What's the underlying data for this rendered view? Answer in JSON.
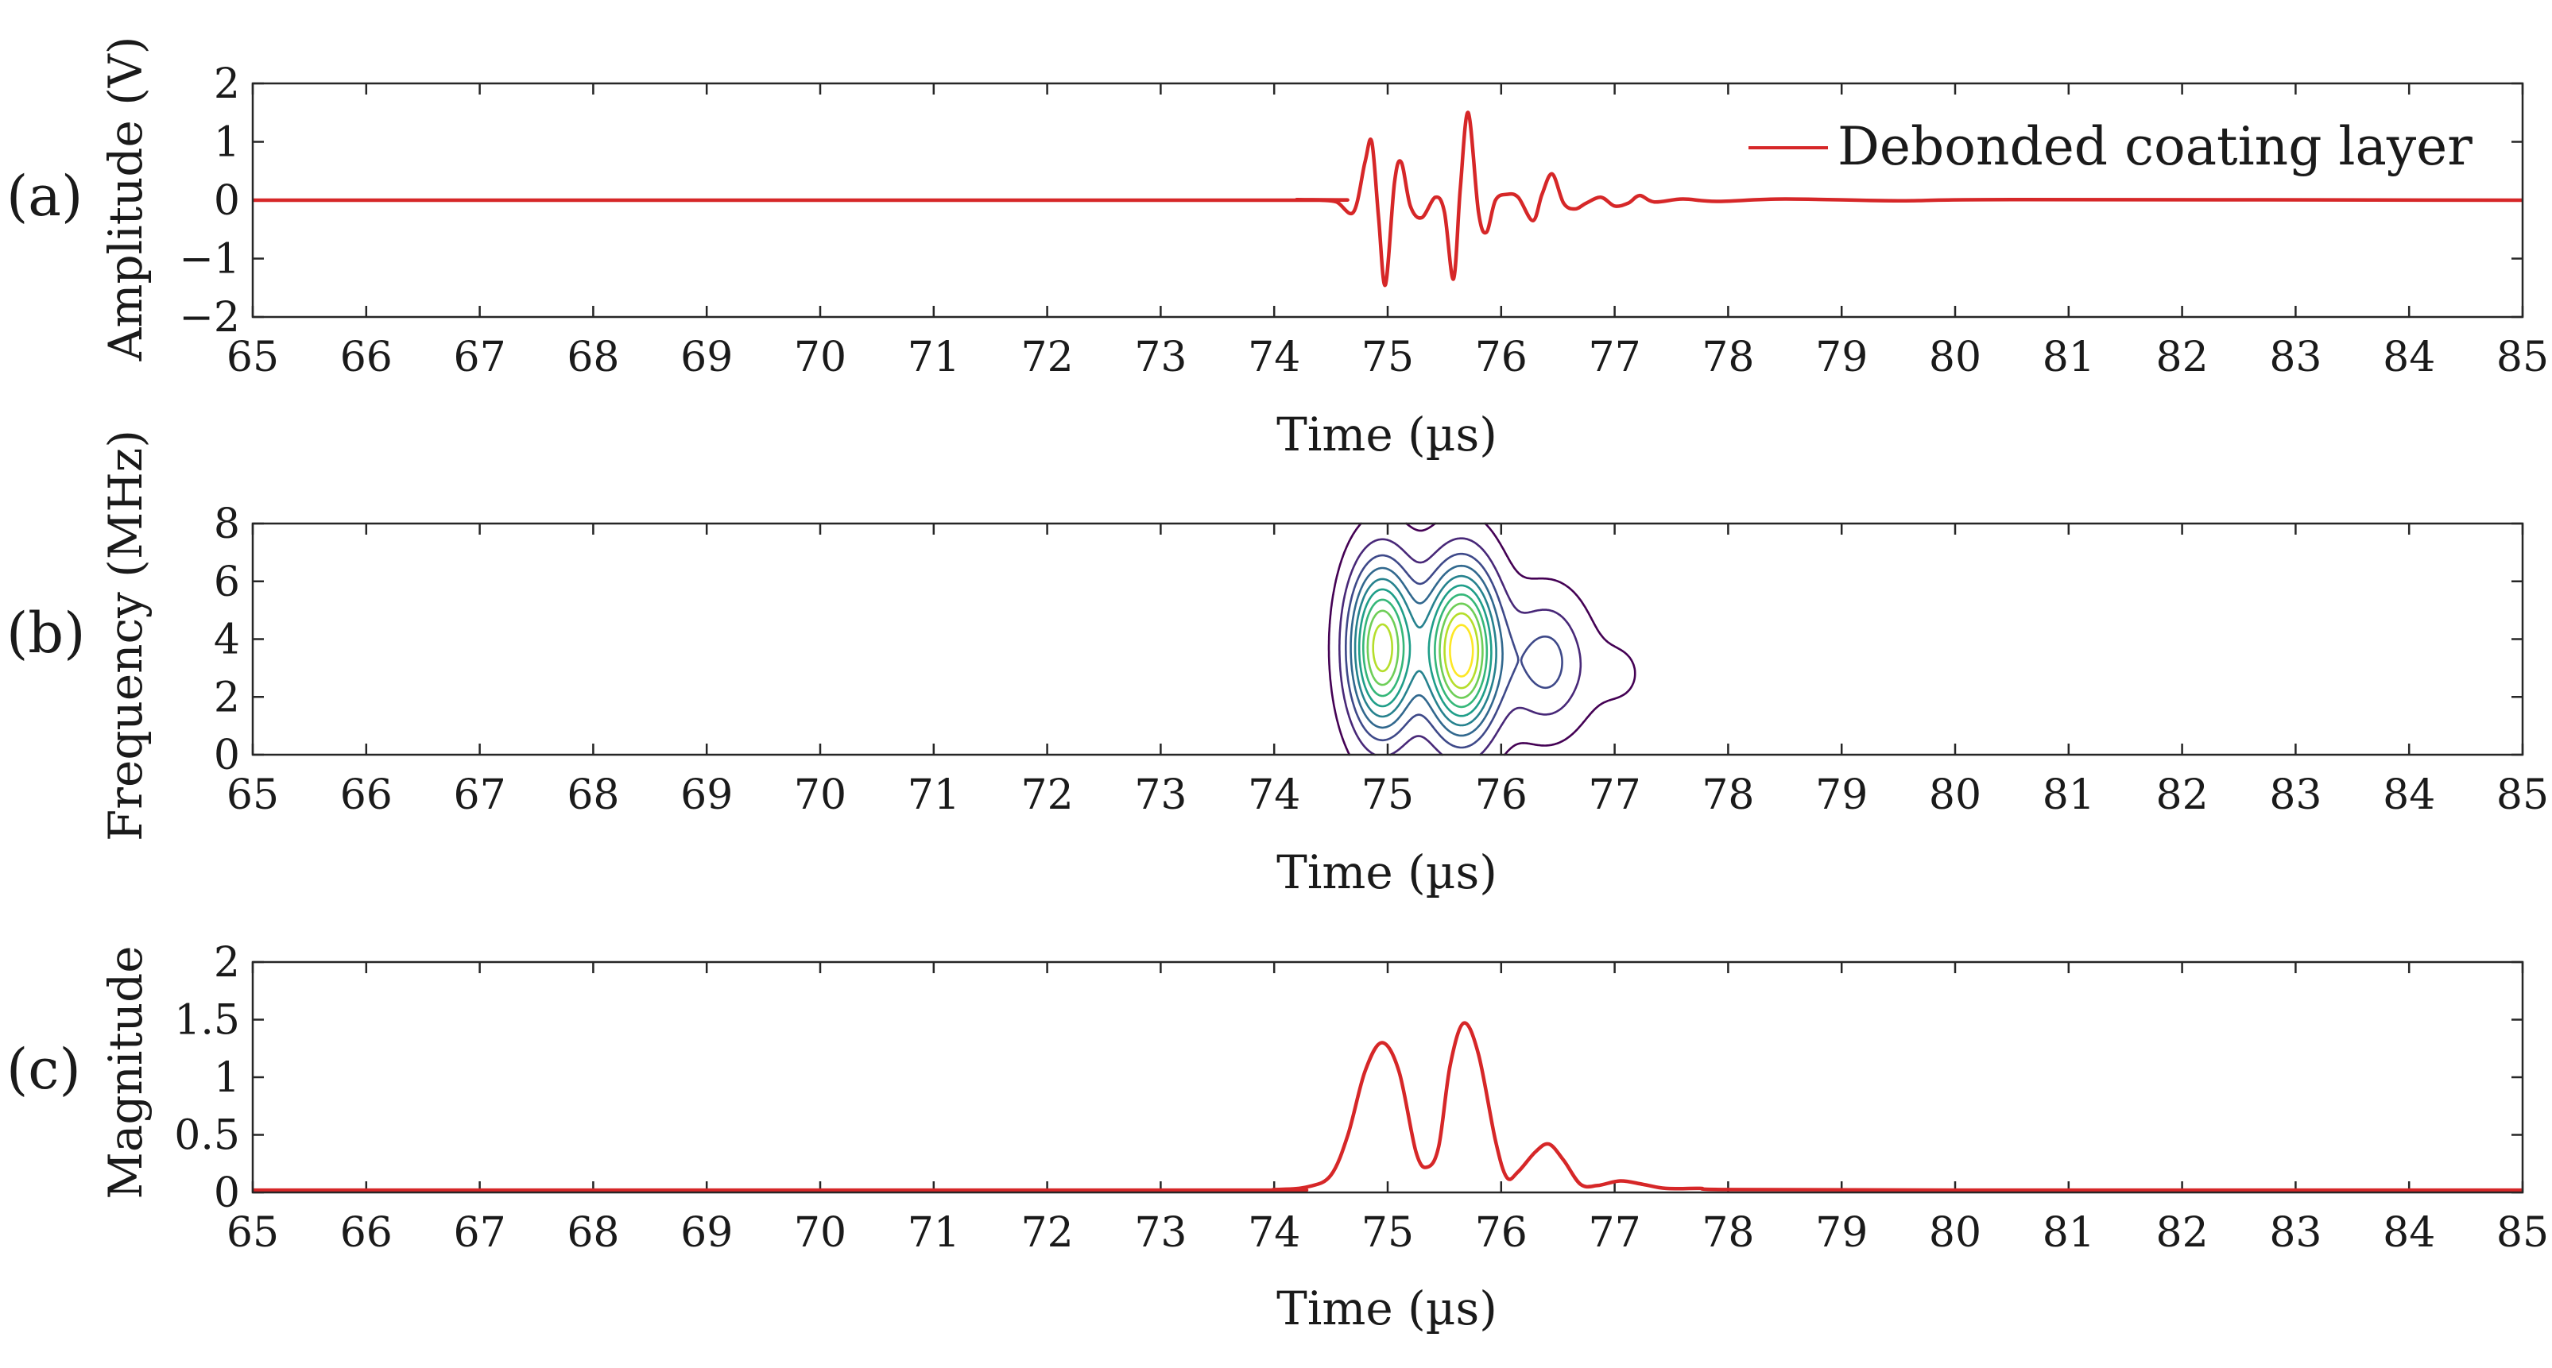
{
  "chart_data": [
    {
      "panel_label": "(a)",
      "type": "line",
      "xlabel": "Time (µs)",
      "ylabel": "Amplitude (V)",
      "xlim": [
        65,
        85
      ],
      "ylim": [
        -2,
        2
      ],
      "xticks": [
        65,
        66,
        67,
        68,
        69,
        70,
        71,
        72,
        73,
        74,
        75,
        76,
        77,
        78,
        79,
        80,
        81,
        82,
        83,
        84,
        85
      ],
      "yticks": [
        -2,
        -1,
        0,
        1,
        2
      ],
      "ytick_labels": [
        "−2",
        "−1",
        "0",
        "1",
        "2"
      ],
      "grid": false,
      "legend_position": "top-right",
      "series": [
        {
          "name": "Debonded coating layer",
          "color": "#d62728",
          "points": [
            [
              65,
              0
            ],
            [
              73.9,
              0
            ],
            [
              74.2,
              0.01
            ],
            [
              74.4,
              0
            ],
            [
              74.55,
              -0.03
            ],
            [
              74.7,
              -0.2
            ],
            [
              74.8,
              0.65
            ],
            [
              74.86,
              1.0
            ],
            [
              74.92,
              -0.3
            ],
            [
              74.98,
              -1.45
            ],
            [
              75.06,
              0.3
            ],
            [
              75.12,
              0.65
            ],
            [
              75.2,
              -0.1
            ],
            [
              75.3,
              -0.3
            ],
            [
              75.42,
              0.05
            ],
            [
              75.5,
              -0.2
            ],
            [
              75.58,
              -1.35
            ],
            [
              75.64,
              0.2
            ],
            [
              75.71,
              1.5
            ],
            [
              75.8,
              -0.2
            ],
            [
              75.87,
              -0.55
            ],
            [
              75.95,
              0.0
            ],
            [
              76.05,
              0.1
            ],
            [
              76.15,
              0.05
            ],
            [
              76.28,
              -0.35
            ],
            [
              76.36,
              0.1
            ],
            [
              76.45,
              0.45
            ],
            [
              76.55,
              -0.05
            ],
            [
              76.65,
              -0.15
            ],
            [
              76.75,
              -0.05
            ],
            [
              76.88,
              0.05
            ],
            [
              77.0,
              -0.1
            ],
            [
              77.12,
              -0.05
            ],
            [
              77.22,
              0.08
            ],
            [
              77.35,
              -0.03
            ],
            [
              77.6,
              0.02
            ],
            [
              77.9,
              -0.02
            ],
            [
              78.5,
              0.02
            ],
            [
              79.5,
              -0.01
            ],
            [
              80.5,
              0.01
            ],
            [
              85,
              0
            ]
          ]
        }
      ]
    },
    {
      "panel_label": "(b)",
      "type": "contour",
      "xlabel": "Time (µs)",
      "ylabel": "Frequency (MHz)",
      "xlim": [
        65,
        85
      ],
      "ylim": [
        0,
        8
      ],
      "xticks": [
        65,
        66,
        67,
        68,
        69,
        70,
        71,
        72,
        73,
        74,
        75,
        76,
        77,
        78,
        79,
        80,
        81,
        82,
        83,
        84,
        85
      ],
      "yticks": [
        0,
        2,
        4,
        6,
        8
      ],
      "ytick_labels": [
        "0",
        "2",
        "4",
        "6",
        "8"
      ],
      "grid": false,
      "colormap": [
        "#440154",
        "#482878",
        "#3e4989",
        "#31688e",
        "#26828e",
        "#1f9e89",
        "#35b779",
        "#6ece58",
        "#b5de2b",
        "#fde725"
      ],
      "contour_levels": 10,
      "sources": [
        {
          "t": 74.95,
          "f": 3.7,
          "amp": 1.3,
          "sigma_t": 0.2,
          "sigma_f": 2.0
        },
        {
          "t": 75.65,
          "f": 3.6,
          "amp": 1.48,
          "sigma_t": 0.22,
          "sigma_f": 2.0
        },
        {
          "t": 76.4,
          "f": 3.2,
          "amp": 0.42,
          "sigma_t": 0.25,
          "sigma_f": 1.6
        },
        {
          "t": 77.05,
          "f": 2.8,
          "amp": 0.1,
          "sigma_t": 0.2,
          "sigma_f": 1.0
        }
      ]
    },
    {
      "panel_label": "(c)",
      "type": "line",
      "xlabel": "Time (µs)",
      "ylabel": "Magnitude",
      "xlim": [
        65,
        85
      ],
      "ylim": [
        0,
        2
      ],
      "xticks": [
        65,
        66,
        67,
        68,
        69,
        70,
        71,
        72,
        73,
        74,
        75,
        76,
        77,
        78,
        79,
        80,
        81,
        82,
        83,
        84,
        85
      ],
      "yticks": [
        0,
        0.5,
        1,
        1.5,
        2
      ],
      "ytick_labels": [
        "0",
        "0.5",
        "1",
        "1.5",
        "2"
      ],
      "grid": false,
      "series": [
        {
          "color": "#d62728",
          "points": [
            [
              65,
              0.02
            ],
            [
              73.5,
              0.02
            ],
            [
              74.0,
              0.025
            ],
            [
              74.3,
              0.05
            ],
            [
              74.5,
              0.15
            ],
            [
              74.65,
              0.5
            ],
            [
              74.8,
              1.05
            ],
            [
              74.95,
              1.3
            ],
            [
              75.1,
              1.05
            ],
            [
              75.25,
              0.35
            ],
            [
              75.35,
              0.22
            ],
            [
              75.45,
              0.4
            ],
            [
              75.55,
              1.1
            ],
            [
              75.67,
              1.47
            ],
            [
              75.8,
              1.2
            ],
            [
              75.95,
              0.45
            ],
            [
              76.05,
              0.13
            ],
            [
              76.15,
              0.18
            ],
            [
              76.3,
              0.35
            ],
            [
              76.42,
              0.42
            ],
            [
              76.55,
              0.28
            ],
            [
              76.7,
              0.07
            ],
            [
              76.85,
              0.06
            ],
            [
              77.05,
              0.1
            ],
            [
              77.25,
              0.07
            ],
            [
              77.45,
              0.035
            ],
            [
              77.75,
              0.035
            ],
            [
              78.0,
              0.025
            ],
            [
              80.0,
              0.02
            ],
            [
              85,
              0.02
            ]
          ]
        }
      ]
    }
  ]
}
